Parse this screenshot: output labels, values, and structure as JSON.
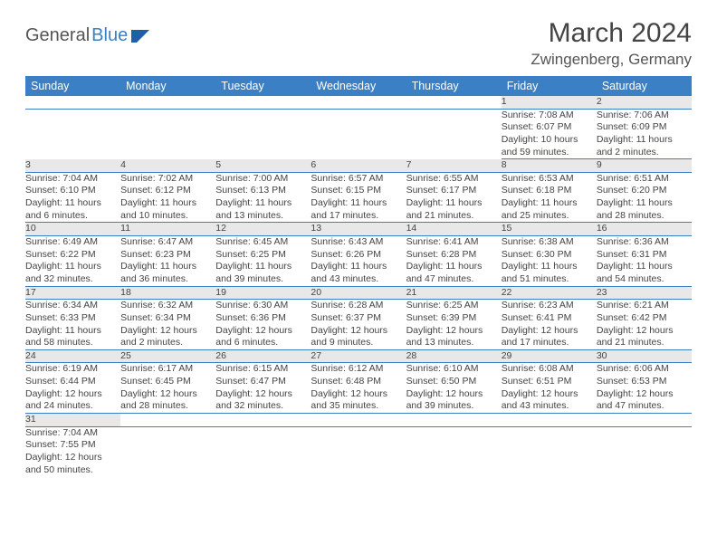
{
  "logo": {
    "text1": "General",
    "text2": "Blue"
  },
  "title": "March 2024",
  "location": "Zwingenberg, Germany",
  "colors": {
    "header_bg": "#3b7fc4",
    "header_text": "#ffffff",
    "daynum_bg": "#e8e8e8",
    "row_border": "#3b7fc4",
    "body_text": "#444444",
    "logo_blue": "#3b7fc4",
    "logo_gray": "#555555"
  },
  "weekdays": [
    "Sunday",
    "Monday",
    "Tuesday",
    "Wednesday",
    "Thursday",
    "Friday",
    "Saturday"
  ],
  "weeks": [
    [
      null,
      null,
      null,
      null,
      null,
      {
        "n": "1",
        "r": "Sunrise: 7:08 AM",
        "s": "Sunset: 6:07 PM",
        "d1": "Daylight: 10 hours",
        "d2": "and 59 minutes."
      },
      {
        "n": "2",
        "r": "Sunrise: 7:06 AM",
        "s": "Sunset: 6:09 PM",
        "d1": "Daylight: 11 hours",
        "d2": "and 2 minutes."
      }
    ],
    [
      {
        "n": "3",
        "r": "Sunrise: 7:04 AM",
        "s": "Sunset: 6:10 PM",
        "d1": "Daylight: 11 hours",
        "d2": "and 6 minutes."
      },
      {
        "n": "4",
        "r": "Sunrise: 7:02 AM",
        "s": "Sunset: 6:12 PM",
        "d1": "Daylight: 11 hours",
        "d2": "and 10 minutes."
      },
      {
        "n": "5",
        "r": "Sunrise: 7:00 AM",
        "s": "Sunset: 6:13 PM",
        "d1": "Daylight: 11 hours",
        "d2": "and 13 minutes."
      },
      {
        "n": "6",
        "r": "Sunrise: 6:57 AM",
        "s": "Sunset: 6:15 PM",
        "d1": "Daylight: 11 hours",
        "d2": "and 17 minutes."
      },
      {
        "n": "7",
        "r": "Sunrise: 6:55 AM",
        "s": "Sunset: 6:17 PM",
        "d1": "Daylight: 11 hours",
        "d2": "and 21 minutes."
      },
      {
        "n": "8",
        "r": "Sunrise: 6:53 AM",
        "s": "Sunset: 6:18 PM",
        "d1": "Daylight: 11 hours",
        "d2": "and 25 minutes."
      },
      {
        "n": "9",
        "r": "Sunrise: 6:51 AM",
        "s": "Sunset: 6:20 PM",
        "d1": "Daylight: 11 hours",
        "d2": "and 28 minutes."
      }
    ],
    [
      {
        "n": "10",
        "r": "Sunrise: 6:49 AM",
        "s": "Sunset: 6:22 PM",
        "d1": "Daylight: 11 hours",
        "d2": "and 32 minutes."
      },
      {
        "n": "11",
        "r": "Sunrise: 6:47 AM",
        "s": "Sunset: 6:23 PM",
        "d1": "Daylight: 11 hours",
        "d2": "and 36 minutes."
      },
      {
        "n": "12",
        "r": "Sunrise: 6:45 AM",
        "s": "Sunset: 6:25 PM",
        "d1": "Daylight: 11 hours",
        "d2": "and 39 minutes."
      },
      {
        "n": "13",
        "r": "Sunrise: 6:43 AM",
        "s": "Sunset: 6:26 PM",
        "d1": "Daylight: 11 hours",
        "d2": "and 43 minutes."
      },
      {
        "n": "14",
        "r": "Sunrise: 6:41 AM",
        "s": "Sunset: 6:28 PM",
        "d1": "Daylight: 11 hours",
        "d2": "and 47 minutes."
      },
      {
        "n": "15",
        "r": "Sunrise: 6:38 AM",
        "s": "Sunset: 6:30 PM",
        "d1": "Daylight: 11 hours",
        "d2": "and 51 minutes."
      },
      {
        "n": "16",
        "r": "Sunrise: 6:36 AM",
        "s": "Sunset: 6:31 PM",
        "d1": "Daylight: 11 hours",
        "d2": "and 54 minutes."
      }
    ],
    [
      {
        "n": "17",
        "r": "Sunrise: 6:34 AM",
        "s": "Sunset: 6:33 PM",
        "d1": "Daylight: 11 hours",
        "d2": "and 58 minutes."
      },
      {
        "n": "18",
        "r": "Sunrise: 6:32 AM",
        "s": "Sunset: 6:34 PM",
        "d1": "Daylight: 12 hours",
        "d2": "and 2 minutes."
      },
      {
        "n": "19",
        "r": "Sunrise: 6:30 AM",
        "s": "Sunset: 6:36 PM",
        "d1": "Daylight: 12 hours",
        "d2": "and 6 minutes."
      },
      {
        "n": "20",
        "r": "Sunrise: 6:28 AM",
        "s": "Sunset: 6:37 PM",
        "d1": "Daylight: 12 hours",
        "d2": "and 9 minutes."
      },
      {
        "n": "21",
        "r": "Sunrise: 6:25 AM",
        "s": "Sunset: 6:39 PM",
        "d1": "Daylight: 12 hours",
        "d2": "and 13 minutes."
      },
      {
        "n": "22",
        "r": "Sunrise: 6:23 AM",
        "s": "Sunset: 6:41 PM",
        "d1": "Daylight: 12 hours",
        "d2": "and 17 minutes."
      },
      {
        "n": "23",
        "r": "Sunrise: 6:21 AM",
        "s": "Sunset: 6:42 PM",
        "d1": "Daylight: 12 hours",
        "d2": "and 21 minutes."
      }
    ],
    [
      {
        "n": "24",
        "r": "Sunrise: 6:19 AM",
        "s": "Sunset: 6:44 PM",
        "d1": "Daylight: 12 hours",
        "d2": "and 24 minutes."
      },
      {
        "n": "25",
        "r": "Sunrise: 6:17 AM",
        "s": "Sunset: 6:45 PM",
        "d1": "Daylight: 12 hours",
        "d2": "and 28 minutes."
      },
      {
        "n": "26",
        "r": "Sunrise: 6:15 AM",
        "s": "Sunset: 6:47 PM",
        "d1": "Daylight: 12 hours",
        "d2": "and 32 minutes."
      },
      {
        "n": "27",
        "r": "Sunrise: 6:12 AM",
        "s": "Sunset: 6:48 PM",
        "d1": "Daylight: 12 hours",
        "d2": "and 35 minutes."
      },
      {
        "n": "28",
        "r": "Sunrise: 6:10 AM",
        "s": "Sunset: 6:50 PM",
        "d1": "Daylight: 12 hours",
        "d2": "and 39 minutes."
      },
      {
        "n": "29",
        "r": "Sunrise: 6:08 AM",
        "s": "Sunset: 6:51 PM",
        "d1": "Daylight: 12 hours",
        "d2": "and 43 minutes."
      },
      {
        "n": "30",
        "r": "Sunrise: 6:06 AM",
        "s": "Sunset: 6:53 PM",
        "d1": "Daylight: 12 hours",
        "d2": "and 47 minutes."
      }
    ],
    [
      {
        "n": "31",
        "r": "Sunrise: 7:04 AM",
        "s": "Sunset: 7:55 PM",
        "d1": "Daylight: 12 hours",
        "d2": "and 50 minutes."
      },
      null,
      null,
      null,
      null,
      null,
      null
    ]
  ]
}
